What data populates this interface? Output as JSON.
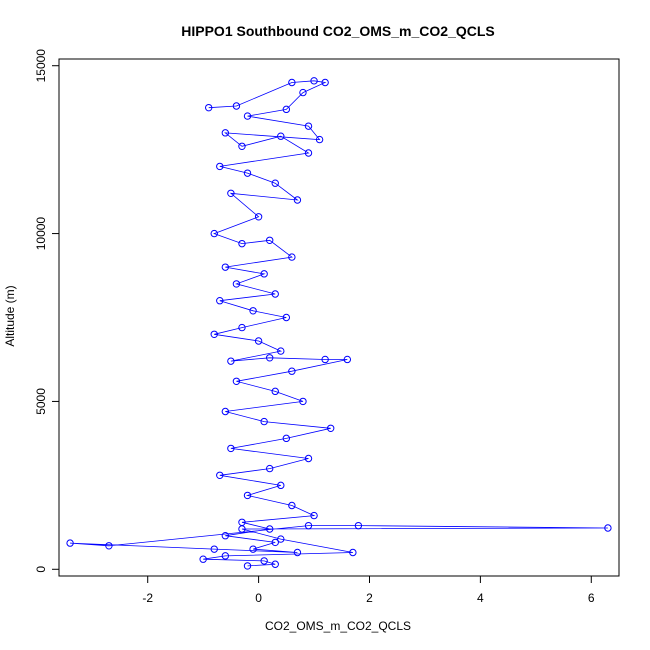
{
  "chart_data": {
    "type": "scatter",
    "title": "HIPPO1 Southbound CO2_OMS_m_CO2_QCLS",
    "xlabel": "CO2_OMS_m_CO2_QCLS",
    "ylabel": "Altitude (m)",
    "xlim": [
      -3.6,
      6.5
    ],
    "ylim": [
      -200,
      15200
    ],
    "xticks": [
      -2,
      0,
      2,
      4,
      6
    ],
    "xtick_labels": [
      "-2",
      "0",
      "2",
      "4",
      "6"
    ],
    "yticks": [
      0,
      5000,
      10000,
      15000
    ],
    "ytick_labels": [
      "0",
      "5000",
      "10000",
      "15000"
    ],
    "grid": false,
    "legend": "none",
    "marker": "open-circle",
    "connected": true,
    "series_color": "#0000ff",
    "series": [
      {
        "x": [
          -0.9,
          -0.4,
          0.6,
          1.0,
          1.2,
          0.8,
          0.5,
          -0.2,
          0.9,
          1.1,
          -0.6,
          -0.3,
          0.4,
          0.9,
          -0.7,
          -0.2,
          0.3,
          0.7,
          -0.5,
          0.0,
          -0.8,
          -0.3,
          0.2,
          0.6,
          -0.6,
          0.1,
          -0.4,
          0.3,
          -0.7,
          -0.1,
          0.5,
          -0.3,
          -0.8,
          0.0,
          0.4,
          -0.5,
          0.2,
          1.2,
          1.6,
          0.6,
          -0.4,
          0.3,
          0.8,
          -0.6,
          0.1,
          1.3,
          0.5,
          -0.5,
          0.9,
          0.2,
          -0.7,
          0.4,
          -0.2,
          0.6,
          1.0,
          -0.3,
          0.2,
          -0.6,
          0.3,
          -0.1,
          0.7,
          -0.8,
          -3.4,
          -2.7,
          0.9,
          1.8,
          6.3,
          -0.3,
          0.4,
          1.7,
          -0.6,
          -1.0,
          0.1,
          0.3,
          -0.2
        ],
        "y": [
          13750,
          13800,
          14500,
          14550,
          14500,
          14200,
          13700,
          13500,
          13200,
          12800,
          13000,
          12600,
          12900,
          12400,
          12000,
          11800,
          11500,
          11000,
          11200,
          10500,
          10000,
          9700,
          9800,
          9300,
          9000,
          8800,
          8500,
          8200,
          8000,
          7700,
          7500,
          7200,
          7000,
          6800,
          6500,
          6200,
          6300,
          6250,
          6250,
          5900,
          5600,
          5300,
          5000,
          4700,
          4400,
          4200,
          3900,
          3600,
          3300,
          3000,
          2800,
          2500,
          2200,
          1900,
          1600,
          1400,
          1200,
          1000,
          800,
          600,
          500,
          600,
          780,
          700,
          1300,
          1300,
          1230,
          1200,
          900,
          500,
          400,
          300,
          250,
          150,
          100
        ]
      }
    ]
  }
}
